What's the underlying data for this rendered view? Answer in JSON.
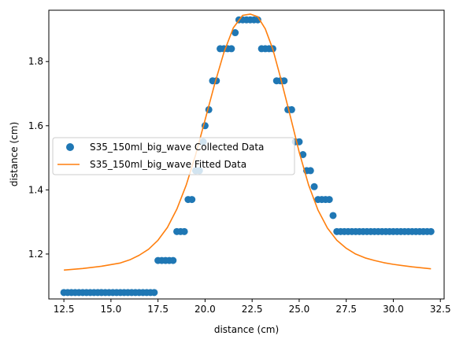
{
  "chart_data": {
    "type": "scatter",
    "title": "",
    "xlabel": "distance (cm)",
    "ylabel": "distance (cm)",
    "xlim": [
      11.7,
      32.7
    ],
    "ylim": [
      1.06,
      1.96
    ],
    "xticks": [
      "12.5",
      "15.0",
      "17.5",
      "20.0",
      "22.5",
      "25.0",
      "27.5",
      "30.0",
      "32.5"
    ],
    "yticks": [
      "1.2",
      "1.4",
      "1.6",
      "1.8"
    ],
    "grid": false,
    "legend_position": "center-left",
    "series": [
      {
        "name": "S35_150ml_big_wave Collected Data",
        "kind": "scatter",
        "color": "#1f77b4",
        "x": [
          12.5,
          12.7,
          12.9,
          13.1,
          13.3,
          13.5,
          13.7,
          13.9,
          14.1,
          14.3,
          14.5,
          14.7,
          14.9,
          15.1,
          15.3,
          15.5,
          15.7,
          15.9,
          16.1,
          16.3,
          16.5,
          16.7,
          16.9,
          17.1,
          17.3,
          17.5,
          17.7,
          17.9,
          18.1,
          18.3,
          18.5,
          18.7,
          18.9,
          19.1,
          19.3,
          19.5,
          19.7,
          19.9,
          20.0,
          20.2,
          20.4,
          20.6,
          20.8,
          21.0,
          21.2,
          21.4,
          21.6,
          21.8,
          22.0,
          22.2,
          22.4,
          22.6,
          22.8,
          23.0,
          23.2,
          23.4,
          23.6,
          23.8,
          24.0,
          24.2,
          24.4,
          24.6,
          24.8,
          25.0,
          25.2,
          25.4,
          25.6,
          25.8,
          26.0,
          26.2,
          26.4,
          26.6,
          26.8,
          27.0,
          27.2,
          27.4,
          27.6,
          27.8,
          28.0,
          28.2,
          28.4,
          28.6,
          28.8,
          29.0,
          29.2,
          29.4,
          29.6,
          29.8,
          30.0,
          30.2,
          30.4,
          30.6,
          30.8,
          31.0,
          31.2,
          31.4,
          31.6,
          31.8,
          32.0
        ],
        "y": [
          1.08,
          1.08,
          1.08,
          1.08,
          1.08,
          1.08,
          1.08,
          1.08,
          1.08,
          1.08,
          1.08,
          1.08,
          1.08,
          1.08,
          1.08,
          1.08,
          1.08,
          1.08,
          1.08,
          1.08,
          1.08,
          1.08,
          1.08,
          1.08,
          1.08,
          1.18,
          1.18,
          1.18,
          1.18,
          1.18,
          1.27,
          1.27,
          1.27,
          1.37,
          1.37,
          1.46,
          1.46,
          1.55,
          1.6,
          1.65,
          1.74,
          1.74,
          1.84,
          1.84,
          1.84,
          1.84,
          1.89,
          1.93,
          1.93,
          1.93,
          1.93,
          1.93,
          1.93,
          1.84,
          1.84,
          1.84,
          1.84,
          1.74,
          1.74,
          1.74,
          1.65,
          1.65,
          1.55,
          1.55,
          1.51,
          1.46,
          1.46,
          1.41,
          1.37,
          1.37,
          1.37,
          1.37,
          1.32,
          1.27,
          1.27,
          1.27,
          1.27,
          1.27,
          1.27,
          1.27,
          1.27,
          1.27,
          1.27,
          1.27,
          1.27,
          1.27,
          1.27,
          1.27,
          1.27,
          1.27,
          1.27,
          1.27,
          1.27,
          1.27,
          1.27,
          1.27,
          1.27,
          1.27,
          1.27
        ]
      },
      {
        "name": "S35_150ml_big_wave Fitted Data",
        "kind": "line",
        "color": "#ff7f0e",
        "x": [
          12.5,
          13.5,
          14.5,
          15.5,
          16.0,
          16.5,
          17.0,
          17.5,
          18.0,
          18.5,
          19.0,
          19.5,
          20.0,
          20.5,
          21.0,
          21.5,
          22.0,
          22.4,
          22.8,
          23.2,
          23.6,
          24.0,
          24.5,
          25.0,
          25.5,
          26.0,
          26.5,
          27.0,
          27.5,
          28.0,
          28.5,
          29.0,
          29.5,
          30.0,
          31.0,
          32.0
        ],
        "y": [
          1.15,
          1.155,
          1.162,
          1.172,
          1.182,
          1.196,
          1.215,
          1.243,
          1.283,
          1.34,
          1.415,
          1.51,
          1.618,
          1.728,
          1.828,
          1.905,
          1.944,
          1.948,
          1.94,
          1.902,
          1.838,
          1.752,
          1.636,
          1.518,
          1.415,
          1.337,
          1.281,
          1.243,
          1.218,
          1.2,
          1.188,
          1.18,
          1.173,
          1.168,
          1.16,
          1.154
        ]
      }
    ]
  }
}
